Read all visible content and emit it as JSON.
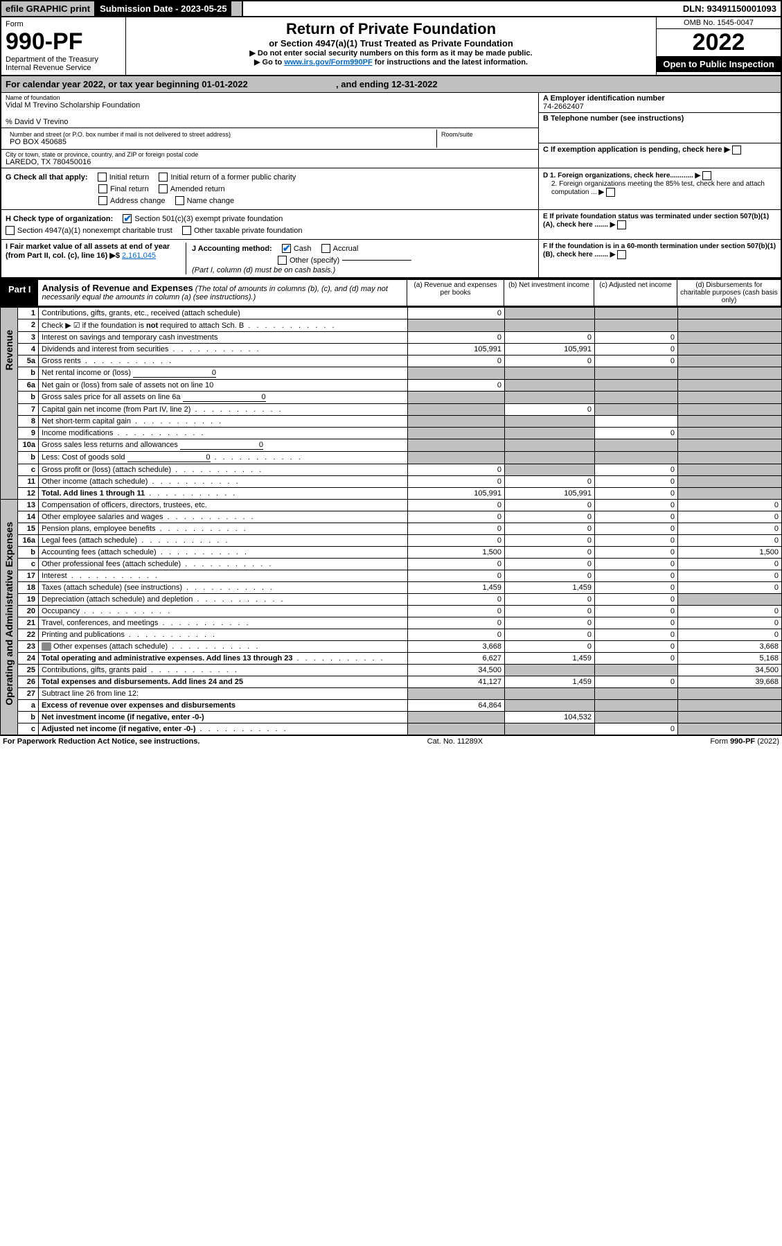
{
  "topbar": {
    "efile": "efile GRAPHIC print",
    "sub_date_lbl": "Submission Date - 2023-05-25",
    "dln": "DLN: 93491150001093"
  },
  "header": {
    "form_word": "Form",
    "form_no": "990-PF",
    "dept": "Department of the Treasury",
    "irs": "Internal Revenue Service",
    "title": "Return of Private Foundation",
    "subtitle": "or Section 4947(a)(1) Trust Treated as Private Foundation",
    "instr1": "▶ Do not enter social security numbers on this form as it may be made public.",
    "instr2_a": "▶ Go to ",
    "instr2_link": "www.irs.gov/Form990PF",
    "instr2_b": " for instructions and the latest information.",
    "omb": "OMB No. 1545-0047",
    "year": "2022",
    "open": "Open to Public Inspection"
  },
  "calyear": {
    "a": "For calendar year 2022, or tax year beginning 01-01-2022",
    "b": ", and ending 12-31-2022"
  },
  "entity": {
    "name_lbl": "Name of foundation",
    "name": "Vidal M Trevino Scholarship Foundation",
    "care_of": "% David V Trevino",
    "addr_lbl": "Number and street (or P.O. box number if mail is not delivered to street address)",
    "addr": "PO BOX 450685",
    "room_lbl": "Room/suite",
    "city_lbl": "City or town, state or province, country, and ZIP or foreign postal code",
    "city": "LAREDO, TX  780450016",
    "ein_lbl": "A Employer identification number",
    "ein": "74-2662407",
    "phone_lbl": "B Telephone number (see instructions)",
    "c_lbl": "C If exemption application is pending, check here",
    "d1": "D 1. Foreign organizations, check here............",
    "d2": "2. Foreign organizations meeting the 85% test, check here and attach computation ...",
    "e_lbl": "E  If private foundation status was terminated under section 507(b)(1)(A), check here .......",
    "f_lbl": "F  If the foundation is in a 60-month termination under section 507(b)(1)(B), check here .......",
    "g_lbl": "G Check all that apply:",
    "g_opts": [
      "Initial return",
      "Initial return of a former public charity",
      "Final return",
      "Amended return",
      "Address change",
      "Name change"
    ],
    "h_lbl": "H Check type of organization:",
    "h_opts": [
      "Section 501(c)(3) exempt private foundation",
      "Section 4947(a)(1) nonexempt charitable trust",
      "Other taxable private foundation"
    ],
    "i_lbl": "I Fair market value of all assets at end of year (from Part II, col. (c), line 16) ▶$ ",
    "i_val": "2,161,045",
    "j_lbl": "J Accounting method:",
    "j_cash": "Cash",
    "j_accr": "Accrual",
    "j_other": "Other (specify)",
    "j_note": "(Part I, column (d) must be on cash basis.)"
  },
  "part1": {
    "label": "Part I",
    "title": "Analysis of Revenue and Expenses",
    "note": "(The total of amounts in columns (b), (c), and (d) may not necessarily equal the amounts in column (a) (see instructions).)",
    "cols": {
      "a": "(a) Revenue and expenses per books",
      "b": "(b) Net investment income",
      "c": "(c) Adjusted net income",
      "d": "(d) Disbursements for charitable purposes (cash basis only)"
    },
    "side_rev": "Revenue",
    "side_exp": "Operating and Administrative Expenses"
  },
  "rows": [
    {
      "ln": "1",
      "desc": "Contributions, gifts, grants, etc., received (attach schedule)",
      "a": "0",
      "shade_b": true,
      "shade_c": true,
      "shade_d": true
    },
    {
      "ln": "2",
      "desc": "Check ▶ ☑ if the foundation is not required to attach Sch. B",
      "dotted": true,
      "shade_a": true,
      "shade_b": true,
      "shade_c": true,
      "shade_d": true,
      "bold_not": true
    },
    {
      "ln": "3",
      "desc": "Interest on savings and temporary cash investments",
      "a": "0",
      "b": "0",
      "c": "0",
      "shade_d": true
    },
    {
      "ln": "4",
      "desc": "Dividends and interest from securities",
      "dotted": true,
      "a": "105,991",
      "b": "105,991",
      "c": "0",
      "shade_d": true
    },
    {
      "ln": "5a",
      "desc": "Gross rents",
      "dotted": true,
      "a": "0",
      "b": "0",
      "c": "0",
      "shade_d": true
    },
    {
      "ln": "b",
      "desc": "Net rental income or (loss)",
      "input": "0",
      "shade_a": true,
      "shade_b": true,
      "shade_c": true,
      "shade_d": true
    },
    {
      "ln": "6a",
      "desc": "Net gain or (loss) from sale of assets not on line 10",
      "a": "0",
      "shade_b": true,
      "shade_c": true,
      "shade_d": true
    },
    {
      "ln": "b",
      "desc": "Gross sales price for all assets on line 6a",
      "input": "0",
      "shade_a": true,
      "shade_b": true,
      "shade_c": true,
      "shade_d": true
    },
    {
      "ln": "7",
      "desc": "Capital gain net income (from Part IV, line 2)",
      "dotted": true,
      "shade_a": true,
      "b": "0",
      "shade_c": true,
      "shade_d": true
    },
    {
      "ln": "8",
      "desc": "Net short-term capital gain",
      "dotted": true,
      "shade_a": true,
      "shade_b": true,
      "shade_d": true
    },
    {
      "ln": "9",
      "desc": "Income modifications",
      "dotted": true,
      "shade_a": true,
      "shade_b": true,
      "c": "0",
      "shade_d": true
    },
    {
      "ln": "10a",
      "desc": "Gross sales less returns and allowances",
      "input": "0",
      "shade_a": true,
      "shade_b": true,
      "shade_c": true,
      "shade_d": true
    },
    {
      "ln": "b",
      "desc": "Less: Cost of goods sold",
      "dotted": true,
      "input": "0",
      "shade_a": true,
      "shade_b": true,
      "shade_c": true,
      "shade_d": true
    },
    {
      "ln": "c",
      "desc": "Gross profit or (loss) (attach schedule)",
      "dotted": true,
      "a": "0",
      "shade_b": true,
      "c": "0",
      "shade_d": true
    },
    {
      "ln": "11",
      "desc": "Other income (attach schedule)",
      "dotted": true,
      "a": "0",
      "b": "0",
      "c": "0",
      "shade_d": true
    },
    {
      "ln": "12",
      "desc": "Total. Add lines 1 through 11",
      "dotted": true,
      "bold": true,
      "a": "105,991",
      "b": "105,991",
      "c": "0",
      "shade_d": true
    },
    {
      "ln": "13",
      "desc": "Compensation of officers, directors, trustees, etc.",
      "a": "0",
      "b": "0",
      "c": "0",
      "d": "0"
    },
    {
      "ln": "14",
      "desc": "Other employee salaries and wages",
      "dotted": true,
      "a": "0",
      "b": "0",
      "c": "0",
      "d": "0"
    },
    {
      "ln": "15",
      "desc": "Pension plans, employee benefits",
      "dotted": true,
      "a": "0",
      "b": "0",
      "c": "0",
      "d": "0"
    },
    {
      "ln": "16a",
      "desc": "Legal fees (attach schedule)",
      "dotted": true,
      "a": "0",
      "b": "0",
      "c": "0",
      "d": "0"
    },
    {
      "ln": "b",
      "desc": "Accounting fees (attach schedule)",
      "dotted": true,
      "a": "1,500",
      "b": "0",
      "c": "0",
      "d": "1,500"
    },
    {
      "ln": "c",
      "desc": "Other professional fees (attach schedule)",
      "dotted": true,
      "a": "0",
      "b": "0",
      "c": "0",
      "d": "0"
    },
    {
      "ln": "17",
      "desc": "Interest",
      "dotted": true,
      "a": "0",
      "b": "0",
      "c": "0",
      "d": "0"
    },
    {
      "ln": "18",
      "desc": "Taxes (attach schedule) (see instructions)",
      "dotted": true,
      "a": "1,459",
      "b": "1,459",
      "c": "0",
      "d": "0"
    },
    {
      "ln": "19",
      "desc": "Depreciation (attach schedule) and depletion",
      "dotted": true,
      "a": "0",
      "b": "0",
      "c": "0",
      "shade_d": true
    },
    {
      "ln": "20",
      "desc": "Occupancy",
      "dotted": true,
      "a": "0",
      "b": "0",
      "c": "0",
      "d": "0"
    },
    {
      "ln": "21",
      "desc": "Travel, conferences, and meetings",
      "dotted": true,
      "a": "0",
      "b": "0",
      "c": "0",
      "d": "0"
    },
    {
      "ln": "22",
      "desc": "Printing and publications",
      "dotted": true,
      "a": "0",
      "b": "0",
      "c": "0",
      "d": "0"
    },
    {
      "ln": "23",
      "desc": "Other expenses (attach schedule)",
      "dotted": true,
      "attach": true,
      "a": "3,668",
      "b": "0",
      "c": "0",
      "d": "3,668"
    },
    {
      "ln": "24",
      "desc": "Total operating and administrative expenses. Add lines 13 through 23",
      "dotted": true,
      "bold": true,
      "a": "6,627",
      "b": "1,459",
      "c": "0",
      "d": "5,168"
    },
    {
      "ln": "25",
      "desc": "Contributions, gifts, grants paid",
      "dotted": true,
      "a": "34,500",
      "shade_b": true,
      "shade_c": true,
      "d": "34,500"
    },
    {
      "ln": "26",
      "desc": "Total expenses and disbursements. Add lines 24 and 25",
      "bold": true,
      "a": "41,127",
      "b": "1,459",
      "c": "0",
      "d": "39,668"
    },
    {
      "ln": "27",
      "desc": "Subtract line 26 from line 12:",
      "shade_a": true,
      "shade_b": true,
      "shade_c": true,
      "shade_d": true
    },
    {
      "ln": "a",
      "desc": "Excess of revenue over expenses and disbursements",
      "bold": true,
      "a": "64,864",
      "shade_b": true,
      "shade_c": true,
      "shade_d": true
    },
    {
      "ln": "b",
      "desc": "Net investment income (if negative, enter -0-)",
      "bold": true,
      "shade_a": true,
      "b": "104,532",
      "shade_c": true,
      "shade_d": true
    },
    {
      "ln": "c",
      "desc": "Adjusted net income (if negative, enter -0-)",
      "dotted": true,
      "bold": true,
      "shade_a": true,
      "shade_b": true,
      "c": "0",
      "shade_d": true
    }
  ],
  "footer": {
    "left": "For Paperwork Reduction Act Notice, see instructions.",
    "mid": "Cat. No. 11289X",
    "right": "Form 990-PF (2022)"
  },
  "colors": {
    "shade": "#c0c0c0",
    "link": "#0066cc",
    "check": "#0066cc"
  }
}
